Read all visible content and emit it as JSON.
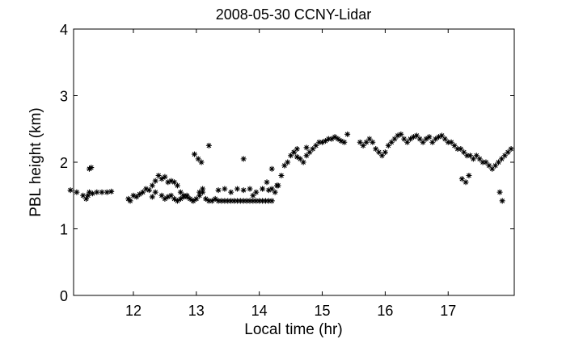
{
  "chart_data": {
    "type": "scatter",
    "title": "2008-05-30 CCNY-Lidar",
    "xlabel": "Local time (hr)",
    "ylabel": "PBL height (km)",
    "xlim": [
      11.05,
      18.05
    ],
    "ylim": [
      0,
      4
    ],
    "x_ticks": [
      "12",
      "13",
      "14",
      "15",
      "16",
      "17"
    ],
    "y_ticks": [
      "0",
      "1",
      "2",
      "3",
      "4"
    ],
    "grid": false,
    "marker": "asterisk",
    "color": "#000000",
    "series": [
      {
        "x": [
          11.0,
          11.1,
          11.2,
          11.25,
          11.28,
          11.3,
          11.35,
          11.42,
          11.5,
          11.58,
          11.65,
          11.3,
          11.33,
          11.92,
          11.95,
          12.0,
          12.05,
          12.1,
          12.15,
          12.2,
          12.25,
          12.3,
          12.35,
          12.4,
          12.45,
          12.5,
          12.55,
          12.6,
          12.65,
          12.7,
          12.75,
          12.8,
          12.85,
          12.9,
          12.95,
          12.3,
          12.35,
          12.45,
          12.5,
          12.55,
          12.6,
          12.65,
          12.7,
          12.75,
          12.8,
          12.85,
          12.95,
          13.0,
          13.05,
          13.1,
          13.15,
          13.2,
          13.25,
          13.3,
          13.35,
          13.4,
          13.45,
          13.5,
          13.55,
          13.6,
          13.65,
          13.7,
          13.75,
          13.8,
          13.85,
          13.9,
          13.95,
          14.0,
          14.05,
          14.1,
          14.15,
          14.2,
          13.05,
          13.1,
          13.35,
          13.45,
          13.55,
          13.65,
          13.75,
          13.85,
          13.95,
          14.05,
          14.15,
          12.97,
          13.03,
          13.08,
          13.2,
          13.75,
          13.9,
          14.05,
          14.12,
          14.2,
          14.28,
          14.2,
          14.25,
          14.3,
          14.35,
          14.4,
          14.45,
          14.5,
          14.55,
          14.6,
          14.65,
          14.7,
          14.75,
          14.8,
          14.85,
          14.9,
          14.95,
          15.0,
          15.05,
          15.1,
          15.15,
          15.2,
          15.25,
          15.3,
          15.35,
          15.4,
          14.55,
          14.6,
          14.75,
          15.6,
          15.65,
          15.7,
          15.75,
          15.8,
          15.85,
          15.9,
          15.95,
          16.0,
          16.05,
          16.1,
          16.15,
          16.2,
          16.25,
          16.3,
          16.35,
          16.4,
          16.45,
          16.5,
          16.55,
          16.6,
          16.65,
          16.7,
          16.75,
          16.8,
          16.85,
          16.9,
          16.95,
          17.0,
          17.05,
          17.1,
          17.15,
          17.2,
          17.25,
          17.3,
          17.35,
          17.4,
          17.45,
          17.5,
          17.55,
          17.6,
          17.65,
          17.7,
          17.75,
          17.8,
          17.85,
          17.9,
          17.95,
          18.0,
          17.22,
          17.28,
          17.33,
          17.82,
          17.86
        ],
        "y": [
          1.58,
          1.55,
          1.5,
          1.45,
          1.5,
          1.55,
          1.53,
          1.55,
          1.55,
          1.55,
          1.56,
          1.9,
          1.92,
          1.45,
          1.42,
          1.5,
          1.48,
          1.52,
          1.55,
          1.6,
          1.58,
          1.65,
          1.72,
          1.8,
          1.75,
          1.78,
          1.7,
          1.72,
          1.7,
          1.65,
          1.55,
          1.5,
          1.48,
          1.45,
          1.42,
          1.48,
          1.55,
          1.5,
          1.45,
          1.48,
          1.5,
          1.45,
          1.42,
          1.45,
          1.48,
          1.5,
          1.42,
          1.45,
          1.5,
          1.55,
          1.45,
          1.42,
          1.42,
          1.45,
          1.42,
          1.42,
          1.42,
          1.42,
          1.42,
          1.42,
          1.42,
          1.42,
          1.42,
          1.42,
          1.42,
          1.42,
          1.42,
          1.42,
          1.42,
          1.42,
          1.42,
          1.42,
          1.55,
          1.6,
          1.58,
          1.6,
          1.55,
          1.6,
          1.58,
          1.6,
          1.55,
          1.6,
          1.58,
          2.12,
          2.05,
          2.0,
          2.25,
          2.05,
          1.5,
          1.6,
          1.7,
          1.9,
          1.65,
          1.6,
          1.55,
          1.65,
          1.8,
          1.95,
          2.0,
          2.1,
          2.15,
          2.2,
          2.05,
          2.0,
          2.1,
          2.15,
          2.2,
          2.25,
          2.3,
          2.3,
          2.32,
          2.35,
          2.35,
          2.38,
          2.35,
          2.32,
          2.3,
          2.42,
          2.15,
          2.08,
          2.22,
          2.3,
          2.25,
          2.3,
          2.35,
          2.3,
          2.2,
          2.15,
          2.1,
          2.15,
          2.25,
          2.3,
          2.35,
          2.4,
          2.42,
          2.35,
          2.3,
          2.35,
          2.38,
          2.4,
          2.35,
          2.3,
          2.35,
          2.38,
          2.3,
          2.35,
          2.38,
          2.4,
          2.35,
          2.3,
          2.3,
          2.25,
          2.2,
          2.2,
          2.15,
          2.1,
          2.1,
          2.05,
          2.1,
          2.05,
          2.0,
          2.0,
          1.95,
          1.9,
          1.95,
          2.0,
          2.05,
          2.1,
          2.15,
          2.2,
          1.75,
          1.7,
          1.8,
          1.55,
          1.42
        ]
      }
    ]
  }
}
